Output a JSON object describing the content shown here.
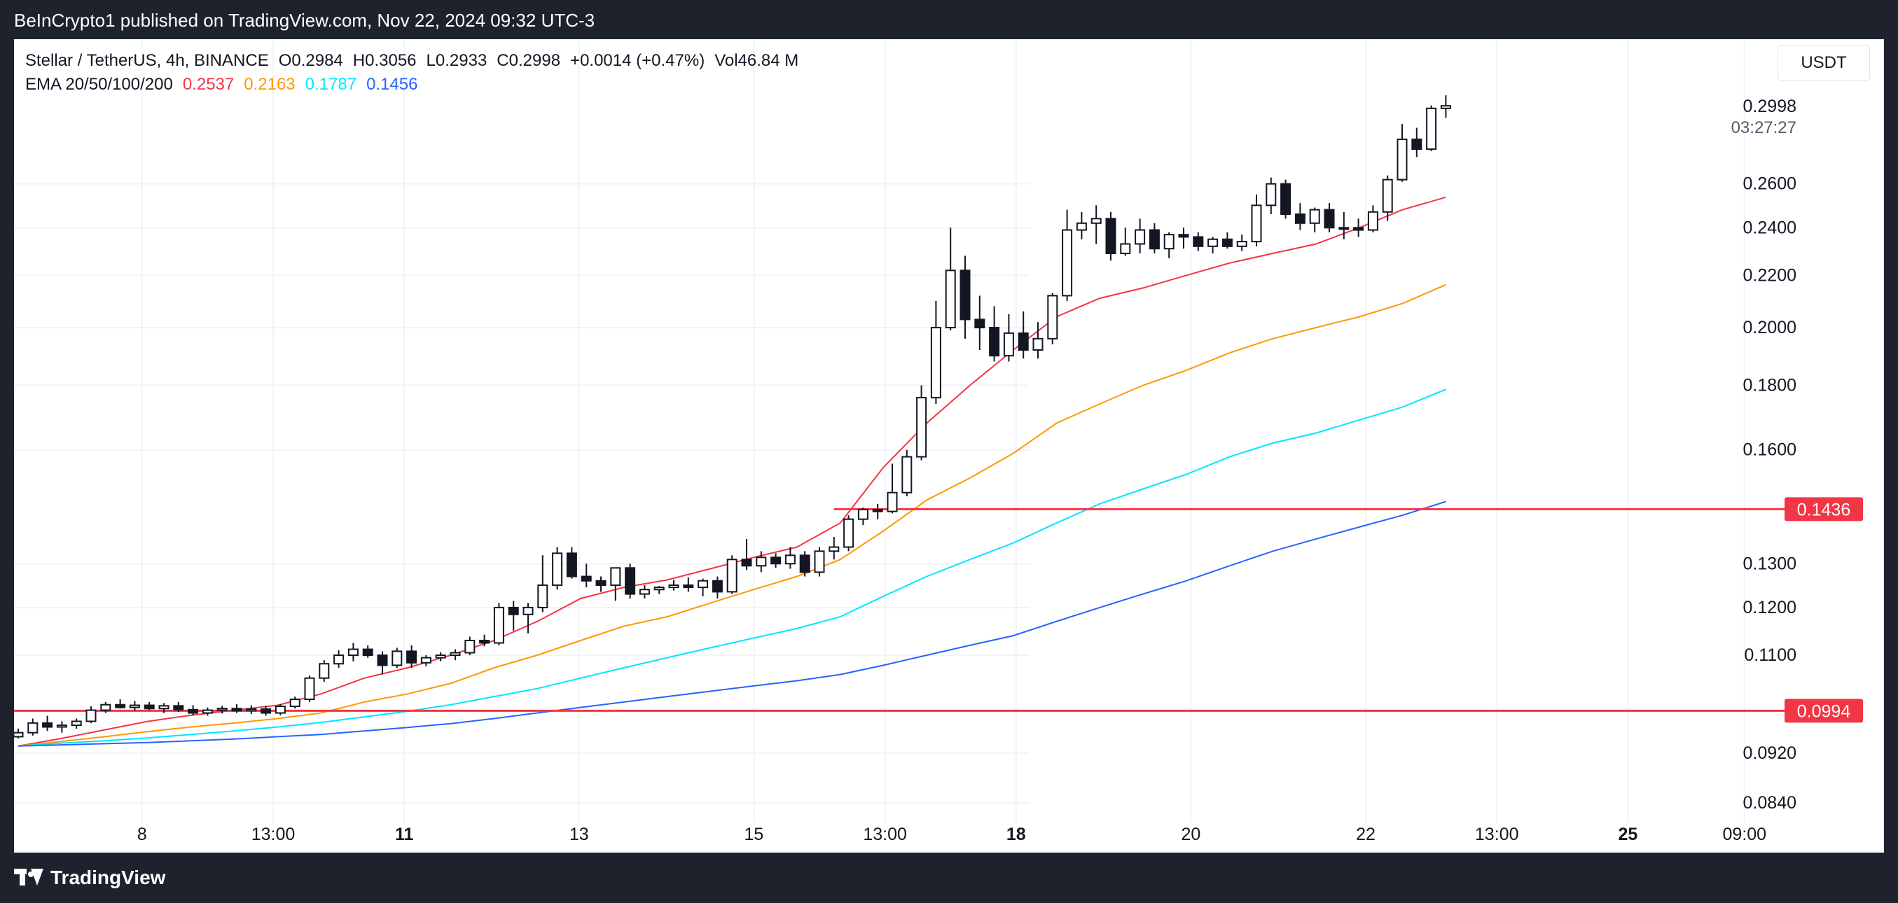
{
  "header": {
    "published_by": "BeInCrypto1 published on TradingView.com, Nov 22, 2024 09:32 UTC-3"
  },
  "footer": {
    "brand": "TradingView"
  },
  "legend": {
    "symbol": "Stellar / TetherUS, 4h, BINANCE",
    "open": "O0.2984",
    "high": "H0.3056",
    "low": "L0.2933",
    "close": "C0.2998",
    "change": "+0.0014 (+0.47%)",
    "volume": "Vol46.84 M",
    "ema_label": "EMA 20/50/100/200",
    "ema20": "0.2537",
    "ema50": "0.2163",
    "ema100": "0.1787",
    "ema200": "0.1456"
  },
  "unit_button": "USDT",
  "chart_data": {
    "type": "candlestick",
    "title": "Stellar / TetherUS, 4h, BINANCE",
    "scale": "log",
    "ylim": [
      0.082,
      0.33
    ],
    "y_ticks": [
      "0.2600",
      "0.2400",
      "0.2200",
      "0.2000",
      "0.1800",
      "0.1600",
      "0.1300",
      "0.1200",
      "0.1100",
      "0.0920",
      "0.0840"
    ],
    "x_ticks": [
      {
        "label": "8",
        "bold": false,
        "idx": 8.5
      },
      {
        "label": "13:00",
        "bold": false,
        "idx": 17.5
      },
      {
        "label": "11",
        "bold": true,
        "idx": 26.5
      },
      {
        "label": "13",
        "bold": false,
        "idx": 38.5
      },
      {
        "label": "15",
        "bold": false,
        "idx": 50.5
      },
      {
        "label": "13:00",
        "bold": false,
        "idx": 59.5
      },
      {
        "label": "18",
        "bold": true,
        "idx": 68.5
      },
      {
        "label": "20",
        "bold": false,
        "idx": 80.5
      },
      {
        "label": "22",
        "bold": false,
        "idx": 92.5
      },
      {
        "label": "13:00",
        "bold": false,
        "idx": 101.5
      },
      {
        "label": "25",
        "bold": true,
        "idx": 110.5
      },
      {
        "label": "09:00",
        "bold": false,
        "idx": 118.5
      }
    ],
    "colors": {
      "ema20": "#f23645",
      "ema50": "#ff9800",
      "ema100": "#00e5ff",
      "ema200": "#2962ff",
      "level": "#f23645"
    },
    "last_price": {
      "value": 0.2998,
      "label": "0.2998",
      "countdown": "03:27:27"
    },
    "levels": [
      {
        "value": 0.1436,
        "label": "0.1436",
        "from_idx": 56
      },
      {
        "value": 0.0994,
        "label": "0.0994",
        "from_idx": 0
      }
    ],
    "candles": [
      [
        0.0948,
        0.0962,
        0.0945,
        0.0955
      ],
      [
        0.0955,
        0.098,
        0.095,
        0.0972
      ],
      [
        0.0972,
        0.0985,
        0.0958,
        0.0965
      ],
      [
        0.0965,
        0.0975,
        0.0955,
        0.0968
      ],
      [
        0.0968,
        0.098,
        0.0962,
        0.0975
      ],
      [
        0.0975,
        0.1002,
        0.0972,
        0.0995
      ],
      [
        0.0995,
        0.101,
        0.099,
        0.1005
      ],
      [
        0.1005,
        0.1015,
        0.0998,
        0.1
      ],
      [
        0.1,
        0.1012,
        0.0994,
        0.1004
      ],
      [
        0.1004,
        0.101,
        0.0995,
        0.0998
      ],
      [
        0.0998,
        0.1008,
        0.099,
        0.1003
      ],
      [
        0.1003,
        0.101,
        0.0992,
        0.0996
      ],
      [
        0.0996,
        0.1004,
        0.0986,
        0.099
      ],
      [
        0.099,
        0.1,
        0.0985,
        0.0995
      ],
      [
        0.0995,
        0.1003,
        0.0989,
        0.0998
      ],
      [
        0.0998,
        0.1006,
        0.099,
        0.0994
      ],
      [
        0.0994,
        0.1004,
        0.0988,
        0.0997
      ],
      [
        0.0997,
        0.1003,
        0.0985,
        0.099
      ],
      [
        0.099,
        0.1006,
        0.0986,
        0.1002
      ],
      [
        0.1002,
        0.102,
        0.0998,
        0.1015
      ],
      [
        0.1015,
        0.106,
        0.101,
        0.1055
      ],
      [
        0.1055,
        0.109,
        0.1048,
        0.1083
      ],
      [
        0.1083,
        0.111,
        0.1075,
        0.11
      ],
      [
        0.11,
        0.1125,
        0.1088,
        0.1112
      ],
      [
        0.1112,
        0.112,
        0.1095,
        0.11
      ],
      [
        0.11,
        0.1108,
        0.1062,
        0.108
      ],
      [
        0.108,
        0.1115,
        0.1075,
        0.1108
      ],
      [
        0.1108,
        0.112,
        0.1075,
        0.1085
      ],
      [
        0.1085,
        0.11,
        0.1078,
        0.1095
      ],
      [
        0.1095,
        0.1106,
        0.1088,
        0.11
      ],
      [
        0.11,
        0.1112,
        0.109,
        0.1105
      ],
      [
        0.1105,
        0.1138,
        0.11,
        0.113
      ],
      [
        0.113,
        0.1142,
        0.1118,
        0.1125
      ],
      [
        0.1125,
        0.121,
        0.112,
        0.12
      ],
      [
        0.12,
        0.1215,
        0.115,
        0.1185
      ],
      [
        0.1185,
        0.121,
        0.1145,
        0.12
      ],
      [
        0.12,
        0.132,
        0.119,
        0.125
      ],
      [
        0.125,
        0.134,
        0.124,
        0.1325
      ],
      [
        0.1325,
        0.134,
        0.1265,
        0.127
      ],
      [
        0.127,
        0.13,
        0.1245,
        0.126
      ],
      [
        0.126,
        0.127,
        0.1235,
        0.125
      ],
      [
        0.125,
        0.1275,
        0.1215,
        0.129
      ],
      [
        0.129,
        0.13,
        0.122,
        0.123
      ],
      [
        0.123,
        0.125,
        0.122,
        0.124
      ],
      [
        0.124,
        0.1248,
        0.123,
        0.1245
      ],
      [
        0.1245,
        0.1262,
        0.1238,
        0.125
      ],
      [
        0.125,
        0.1268,
        0.1235,
        0.1245
      ],
      [
        0.1245,
        0.1265,
        0.1225,
        0.126
      ],
      [
        0.126,
        0.127,
        0.122,
        0.1235
      ],
      [
        0.1235,
        0.132,
        0.123,
        0.131
      ],
      [
        0.131,
        0.136,
        0.1285,
        0.1295
      ],
      [
        0.1295,
        0.133,
        0.128,
        0.1315
      ],
      [
        0.1315,
        0.1325,
        0.129,
        0.13
      ],
      [
        0.13,
        0.134,
        0.1288,
        0.132
      ],
      [
        0.132,
        0.133,
        0.127,
        0.128
      ],
      [
        0.128,
        0.134,
        0.127,
        0.133
      ],
      [
        0.133,
        0.1365,
        0.131,
        0.134
      ],
      [
        0.134,
        0.142,
        0.133,
        0.141
      ],
      [
        0.141,
        0.144,
        0.1395,
        0.1435
      ],
      [
        0.1435,
        0.145,
        0.141,
        0.143
      ],
      [
        0.143,
        0.156,
        0.1425,
        0.148
      ],
      [
        0.148,
        0.16,
        0.147,
        0.158
      ],
      [
        0.158,
        0.18,
        0.157,
        0.176
      ],
      [
        0.176,
        0.21,
        0.174,
        0.2
      ],
      [
        0.2,
        0.24,
        0.199,
        0.222
      ],
      [
        0.222,
        0.228,
        0.196,
        0.203
      ],
      [
        0.203,
        0.212,
        0.192,
        0.2
      ],
      [
        0.2,
        0.208,
        0.188,
        0.19
      ],
      [
        0.19,
        0.205,
        0.188,
        0.198
      ],
      [
        0.198,
        0.206,
        0.189,
        0.192
      ],
      [
        0.192,
        0.202,
        0.189,
        0.196
      ],
      [
        0.196,
        0.213,
        0.194,
        0.212
      ],
      [
        0.212,
        0.248,
        0.21,
        0.239
      ],
      [
        0.239,
        0.247,
        0.235,
        0.242
      ],
      [
        0.242,
        0.25,
        0.233,
        0.244
      ],
      [
        0.244,
        0.247,
        0.226,
        0.229
      ],
      [
        0.229,
        0.24,
        0.228,
        0.233
      ],
      [
        0.233,
        0.244,
        0.229,
        0.239
      ],
      [
        0.239,
        0.242,
        0.229,
        0.231
      ],
      [
        0.231,
        0.238,
        0.227,
        0.237
      ],
      [
        0.237,
        0.24,
        0.231,
        0.236
      ],
      [
        0.236,
        0.238,
        0.23,
        0.232
      ],
      [
        0.232,
        0.236,
        0.229,
        0.235
      ],
      [
        0.235,
        0.238,
        0.231,
        0.232
      ],
      [
        0.232,
        0.237,
        0.23,
        0.234
      ],
      [
        0.234,
        0.255,
        0.232,
        0.25
      ],
      [
        0.25,
        0.263,
        0.246,
        0.26
      ],
      [
        0.26,
        0.262,
        0.244,
        0.246
      ],
      [
        0.246,
        0.251,
        0.239,
        0.242
      ],
      [
        0.242,
        0.249,
        0.238,
        0.248
      ],
      [
        0.248,
        0.251,
        0.238,
        0.24
      ],
      [
        0.24,
        0.247,
        0.235,
        0.24
      ],
      [
        0.24,
        0.244,
        0.236,
        0.239
      ],
      [
        0.239,
        0.25,
        0.238,
        0.247
      ],
      [
        0.247,
        0.264,
        0.243,
        0.262
      ],
      [
        0.262,
        0.29,
        0.261,
        0.282
      ],
      [
        0.282,
        0.288,
        0.273,
        0.277
      ],
      [
        0.277,
        0.3,
        0.276,
        0.2984
      ],
      [
        0.2984,
        0.3056,
        0.2933,
        0.2998
      ]
    ],
    "ema20": [
      0.0932,
      0.0945,
      0.096,
      0.0975,
      0.0986,
      0.0995,
      0.1004,
      0.1025,
      0.1055,
      0.1075,
      0.11,
      0.113,
      0.117,
      0.122,
      0.1245,
      0.1262,
      0.1288,
      0.1315,
      0.134,
      0.14,
      0.155,
      0.168,
      0.18,
      0.192,
      0.204,
      0.211,
      0.215,
      0.22,
      0.225,
      0.229,
      0.233,
      0.24,
      0.248,
      0.2537
    ],
    "ema50": [
      0.0932,
      0.094,
      0.0948,
      0.0957,
      0.0965,
      0.0972,
      0.098,
      0.099,
      0.101,
      0.1025,
      0.1045,
      0.1075,
      0.11,
      0.113,
      0.116,
      0.118,
      0.121,
      0.124,
      0.127,
      0.131,
      0.138,
      0.146,
      0.152,
      0.159,
      0.168,
      0.174,
      0.18,
      0.185,
      0.191,
      0.196,
      0.2,
      0.204,
      0.209,
      0.2163
    ],
    "ema100": [
      0.0932,
      0.0937,
      0.0941,
      0.0946,
      0.0952,
      0.0958,
      0.0965,
      0.0973,
      0.0983,
      0.0993,
      0.1005,
      0.102,
      0.1035,
      0.1055,
      0.1075,
      0.1095,
      0.1115,
      0.1135,
      0.1155,
      0.118,
      0.1225,
      0.127,
      0.131,
      0.135,
      0.14,
      0.145,
      0.149,
      0.153,
      0.158,
      0.162,
      0.165,
      0.169,
      0.173,
      0.1787
    ],
    "ema200": [
      0.0932,
      0.0934,
      0.0936,
      0.0938,
      0.0941,
      0.0944,
      0.0948,
      0.0952,
      0.0958,
      0.0964,
      0.0971,
      0.098,
      0.099,
      0.1,
      0.101,
      0.102,
      0.103,
      0.104,
      0.105,
      0.1062,
      0.108,
      0.11,
      0.112,
      0.114,
      0.117,
      0.12,
      0.123,
      0.126,
      0.1295,
      0.133,
      0.136,
      0.139,
      0.142,
      0.1456
    ]
  }
}
